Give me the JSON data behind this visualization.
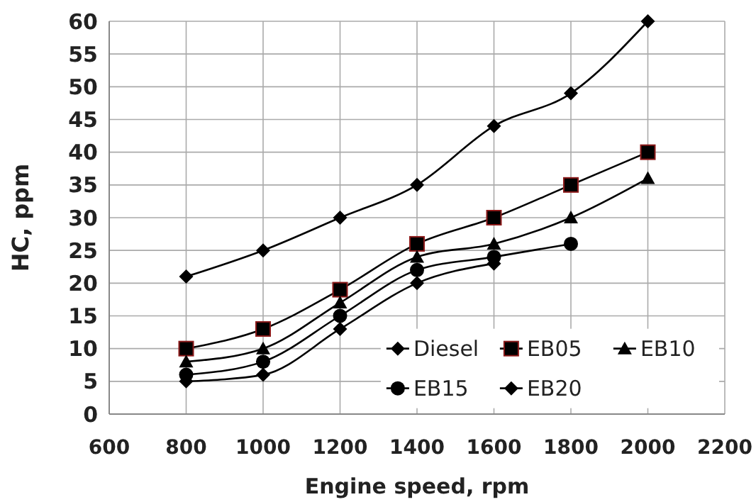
{
  "chart_data": {
    "type": "line",
    "xlabel": "Engine speed, rpm",
    "ylabel": "HC, ppm",
    "xlim": [
      600,
      2200
    ],
    "xticks": [
      600,
      800,
      1000,
      1200,
      1400,
      1600,
      1800,
      2000,
      2200
    ],
    "ylim": [
      0,
      60
    ],
    "yticks": [
      0,
      5,
      10,
      15,
      20,
      25,
      30,
      35,
      40,
      45,
      50,
      55,
      60
    ],
    "grid": true,
    "legend": "bottom right",
    "series": [
      {
        "name": "Diesel",
        "color": "#000000",
        "marker": "diamond",
        "x": [
          800,
          1000,
          1200,
          1400,
          1600,
          1800,
          2000
        ],
        "values": [
          21,
          25,
          30,
          35,
          44,
          49,
          60
        ]
      },
      {
        "name": "EB05",
        "color": "#000000",
        "marker": "square",
        "x": [
          800,
          1000,
          1200,
          1400,
          1600,
          1800,
          2000
        ],
        "values": [
          10,
          13,
          19,
          26,
          30,
          35,
          40
        ]
      },
      {
        "name": "EB10",
        "color": "#000000",
        "marker": "triangle",
        "x": [
          800,
          1000,
          1200,
          1400,
          1600,
          1800,
          2000
        ],
        "values": [
          8,
          10,
          17,
          24,
          26,
          30,
          36
        ]
      },
      {
        "name": "EB15",
        "color": "#000000",
        "marker": "circle",
        "x": [
          800,
          1000,
          1200,
          1400,
          1600,
          1800
        ],
        "values": [
          6,
          8,
          15,
          22,
          24,
          26
        ]
      },
      {
        "name": "EB20",
        "color": "#000000",
        "marker": "diamond",
        "x": [
          800,
          1000,
          1200,
          1400,
          1600
        ],
        "values": [
          5,
          6,
          13,
          20,
          23
        ]
      }
    ]
  }
}
